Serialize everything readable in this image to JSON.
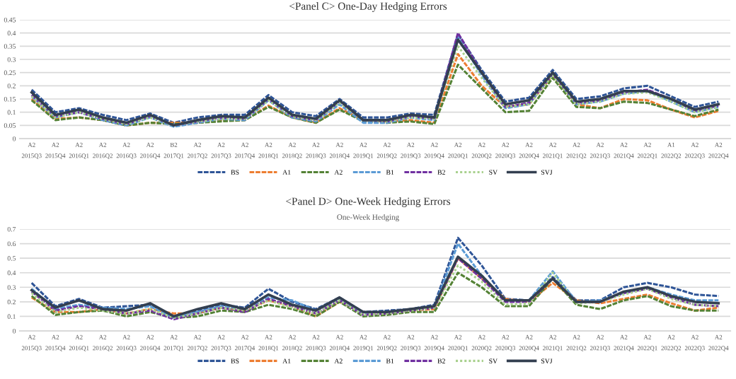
{
  "chart_data": [
    {
      "type": "line",
      "title": "<Panel C> One-Day Hedging Errors",
      "categories": [
        "A2\n2015Q3",
        "A2\n2015Q4",
        "A2\n2016Q1",
        "A2\n2016Q2",
        "A2\n2016Q3",
        "A2\n2016Q4",
        "B2\n2017Q1",
        "A2\n2017Q2",
        "A2\n2017Q3",
        "A2\n2017Q4",
        "A2\n2018Q1",
        "A2\n2018Q2",
        "A2\n2018Q3",
        "A2\n2018Q4",
        "A2\n2019Q1",
        "A2\n2019Q2",
        "A2\n2019Q3",
        "A2\n2019Q4",
        "A2\n2020Q1",
        "A2\n2020Q2",
        "A2\n2020Q3",
        "A2\n2020Q4",
        "A2\n2021Q1",
        "A2\n2021Q2",
        "A2\n2021Q3",
        "A2\n2021Q4",
        "A2\n2022Q1",
        "A1\n2022Q2",
        "A2\n2022Q3",
        "A2\n2022Q4"
      ],
      "ylim": [
        0,
        0.45
      ],
      "yticks": [
        0,
        0.05,
        0.1,
        0.15,
        0.2,
        0.25,
        0.3,
        0.35,
        0.4,
        0.45
      ],
      "grid": "y",
      "legend": "bottom",
      "series": [
        {
          "name": "BS",
          "color": "#2f5597",
          "line_style": "dashed",
          "values": [
            0.185,
            0.1,
            0.115,
            0.09,
            0.07,
            0.095,
            0.06,
            0.08,
            0.09,
            0.09,
            0.165,
            0.1,
            0.085,
            0.15,
            0.08,
            0.08,
            0.095,
            0.09,
            0.395,
            0.26,
            0.14,
            0.155,
            0.26,
            0.15,
            0.16,
            0.19,
            0.2,
            0.16,
            0.12,
            0.14
          ]
        },
        {
          "name": "A1",
          "color": "#ed7d31",
          "line_style": "dashed",
          "values": [
            0.15,
            0.075,
            0.08,
            0.07,
            0.05,
            0.06,
            0.06,
            0.06,
            0.07,
            0.07,
            0.125,
            0.08,
            0.06,
            0.115,
            0.07,
            0.065,
            0.07,
            0.06,
            0.32,
            0.2,
            0.12,
            0.13,
            0.24,
            0.13,
            0.115,
            0.15,
            0.145,
            0.11,
            0.08,
            0.105
          ]
        },
        {
          "name": "A2",
          "color": "#548235",
          "line_style": "dashed",
          "values": [
            0.145,
            0.07,
            0.08,
            0.07,
            0.05,
            0.06,
            0.055,
            0.06,
            0.065,
            0.07,
            0.12,
            0.08,
            0.06,
            0.11,
            0.065,
            0.06,
            0.065,
            0.055,
            0.28,
            0.19,
            0.1,
            0.105,
            0.23,
            0.12,
            0.115,
            0.14,
            0.135,
            0.11,
            0.085,
            0.11
          ]
        },
        {
          "name": "B1",
          "color": "#5b9bd5",
          "line_style": "dashed",
          "values": [
            0.16,
            0.08,
            0.1,
            0.07,
            0.05,
            0.08,
            0.045,
            0.06,
            0.075,
            0.07,
            0.145,
            0.08,
            0.065,
            0.13,
            0.06,
            0.06,
            0.08,
            0.07,
            0.385,
            0.24,
            0.115,
            0.13,
            0.245,
            0.13,
            0.14,
            0.17,
            0.18,
            0.14,
            0.1,
            0.12
          ]
        },
        {
          "name": "B2",
          "color": "#7030a0",
          "line_style": "dashed",
          "values": [
            0.165,
            0.085,
            0.1,
            0.075,
            0.055,
            0.085,
            0.05,
            0.065,
            0.08,
            0.075,
            0.15,
            0.085,
            0.07,
            0.14,
            0.07,
            0.065,
            0.085,
            0.075,
            0.4,
            0.25,
            0.12,
            0.135,
            0.245,
            0.135,
            0.145,
            0.175,
            0.185,
            0.15,
            0.105,
            0.125
          ]
        },
        {
          "name": "SV",
          "color": "#a9d18e",
          "line_style": "dotted",
          "values": [
            0.16,
            0.08,
            0.1,
            0.075,
            0.055,
            0.08,
            0.05,
            0.065,
            0.075,
            0.075,
            0.145,
            0.085,
            0.07,
            0.135,
            0.07,
            0.065,
            0.08,
            0.075,
            0.35,
            0.23,
            0.12,
            0.13,
            0.24,
            0.13,
            0.14,
            0.17,
            0.175,
            0.14,
            0.1,
            0.12
          ]
        },
        {
          "name": "SVJ",
          "color": "#333f50",
          "line_style": "solid",
          "values": [
            0.175,
            0.09,
            0.11,
            0.08,
            0.06,
            0.09,
            0.05,
            0.07,
            0.085,
            0.08,
            0.155,
            0.09,
            0.075,
            0.145,
            0.07,
            0.07,
            0.09,
            0.08,
            0.375,
            0.25,
            0.13,
            0.145,
            0.25,
            0.14,
            0.15,
            0.18,
            0.18,
            0.15,
            0.11,
            0.13
          ]
        }
      ]
    },
    {
      "type": "line",
      "title": "<Panel D> One-Week Hedging Errors",
      "subtitle": "One-Week Hedging",
      "categories": [
        "A2\n2015Q3",
        "A2\n2015Q4",
        "A2\n2016Q1",
        "A2\n2016Q2",
        "A2\n2016Q3",
        "A2\n2016Q4",
        "A2\n2017Q1",
        "A2\n2017Q2",
        "A2\n2017Q3",
        "A2\n2017Q4",
        "A2\n2018Q1",
        "A2\n2018Q2",
        "A2\n2018Q3",
        "A2\n2018Q4",
        "A2\n2019Q1",
        "A2\n2019Q2",
        "A2\n2019Q3",
        "A2\n2019Q4",
        "A2\n2020Q1",
        "A2\n2020Q2",
        "A2\n2020Q3",
        "A2\n2020Q4",
        "A2\n2021Q1",
        "A2\n2021Q2",
        "A2\n2021Q3",
        "A2\n2021Q4",
        "A2\n2022Q1",
        "A2\n2022Q2",
        "A2\n2022Q3",
        "A2\n2022Q4"
      ],
      "ylim": [
        0,
        0.7
      ],
      "yticks": [
        0,
        0.1,
        0.2,
        0.3,
        0.4,
        0.5,
        0.6,
        0.7
      ],
      "grid": "y",
      "legend": "bottom",
      "series": [
        {
          "name": "BS",
          "color": "#2f5597",
          "line_style": "dashed",
          "values": [
            0.33,
            0.17,
            0.22,
            0.16,
            0.17,
            0.18,
            0.1,
            0.14,
            0.18,
            0.16,
            0.29,
            0.2,
            0.15,
            0.23,
            0.13,
            0.14,
            0.15,
            0.18,
            0.64,
            0.45,
            0.22,
            0.21,
            0.37,
            0.21,
            0.21,
            0.3,
            0.33,
            0.3,
            0.25,
            0.24
          ]
        },
        {
          "name": "A1",
          "color": "#ed7d31",
          "line_style": "dashed",
          "values": [
            0.23,
            0.13,
            0.13,
            0.15,
            0.12,
            0.15,
            0.12,
            0.12,
            0.16,
            0.14,
            0.21,
            0.17,
            0.1,
            0.2,
            0.12,
            0.12,
            0.14,
            0.15,
            0.5,
            0.36,
            0.22,
            0.2,
            0.33,
            0.21,
            0.19,
            0.22,
            0.25,
            0.19,
            0.14,
            0.16
          ]
        },
        {
          "name": "A2",
          "color": "#548235",
          "line_style": "dashed",
          "values": [
            0.24,
            0.11,
            0.13,
            0.14,
            0.1,
            0.13,
            0.09,
            0.1,
            0.14,
            0.13,
            0.18,
            0.15,
            0.1,
            0.2,
            0.1,
            0.11,
            0.13,
            0.13,
            0.4,
            0.3,
            0.17,
            0.17,
            0.36,
            0.18,
            0.15,
            0.21,
            0.24,
            0.17,
            0.14,
            0.14
          ]
        },
        {
          "name": "B1",
          "color": "#5b9bd5",
          "line_style": "dashed",
          "values": [
            0.29,
            0.15,
            0.18,
            0.16,
            0.15,
            0.17,
            0.09,
            0.13,
            0.17,
            0.15,
            0.23,
            0.21,
            0.14,
            0.22,
            0.12,
            0.13,
            0.15,
            0.16,
            0.6,
            0.38,
            0.21,
            0.21,
            0.41,
            0.2,
            0.21,
            0.26,
            0.3,
            0.25,
            0.21,
            0.21
          ]
        },
        {
          "name": "B2",
          "color": "#7030a0",
          "line_style": "dashed",
          "values": [
            0.27,
            0.14,
            0.17,
            0.15,
            0.12,
            0.14,
            0.08,
            0.12,
            0.16,
            0.13,
            0.22,
            0.17,
            0.12,
            0.21,
            0.11,
            0.12,
            0.14,
            0.16,
            0.5,
            0.36,
            0.2,
            0.2,
            0.36,
            0.2,
            0.2,
            0.26,
            0.29,
            0.23,
            0.18,
            0.17
          ]
        },
        {
          "name": "SV",
          "color": "#a9d18e",
          "line_style": "dotted",
          "values": [
            0.26,
            0.13,
            0.16,
            0.14,
            0.12,
            0.15,
            0.09,
            0.12,
            0.16,
            0.14,
            0.21,
            0.16,
            0.12,
            0.21,
            0.11,
            0.12,
            0.14,
            0.16,
            0.45,
            0.34,
            0.18,
            0.19,
            0.4,
            0.19,
            0.2,
            0.25,
            0.29,
            0.22,
            0.18,
            0.17
          ]
        },
        {
          "name": "SVJ",
          "color": "#333f50",
          "line_style": "solid",
          "values": [
            0.28,
            0.16,
            0.21,
            0.15,
            0.14,
            0.19,
            0.1,
            0.15,
            0.19,
            0.15,
            0.25,
            0.18,
            0.14,
            0.23,
            0.13,
            0.13,
            0.15,
            0.17,
            0.51,
            0.38,
            0.21,
            0.21,
            0.36,
            0.2,
            0.2,
            0.27,
            0.3,
            0.24,
            0.2,
            0.19
          ]
        }
      ]
    }
  ]
}
